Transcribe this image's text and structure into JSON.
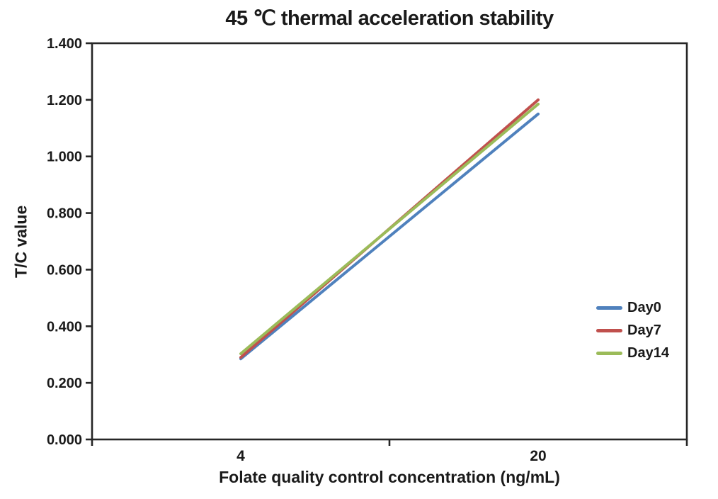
{
  "title": "45 ℃ thermal acceleration stability",
  "colors": {
    "text": "#1a1a1a",
    "axis": "#262626",
    "background": "#ffffff"
  },
  "chart_data": {
    "type": "line",
    "title": "45 ℃ thermal acceleration stability",
    "xlabel": "Folate quality control concentration (ng/mL)",
    "ylabel": "T/C value",
    "categories": [
      "4",
      "20"
    ],
    "series": [
      {
        "name": "Day0",
        "color": "#4F81BD",
        "values": [
          0.285,
          1.15
        ]
      },
      {
        "name": "Day7",
        "color": "#C0504D",
        "values": [
          0.29,
          1.2
        ]
      },
      {
        "name": "Day14",
        "color": "#9BBB59",
        "values": [
          0.303,
          1.185
        ]
      }
    ],
    "ylim": [
      0.0,
      1.4
    ],
    "ytick_step": 0.2,
    "ytick_decimals": 3,
    "grid": false,
    "legend_position": "right-inside",
    "line_width": 4
  }
}
